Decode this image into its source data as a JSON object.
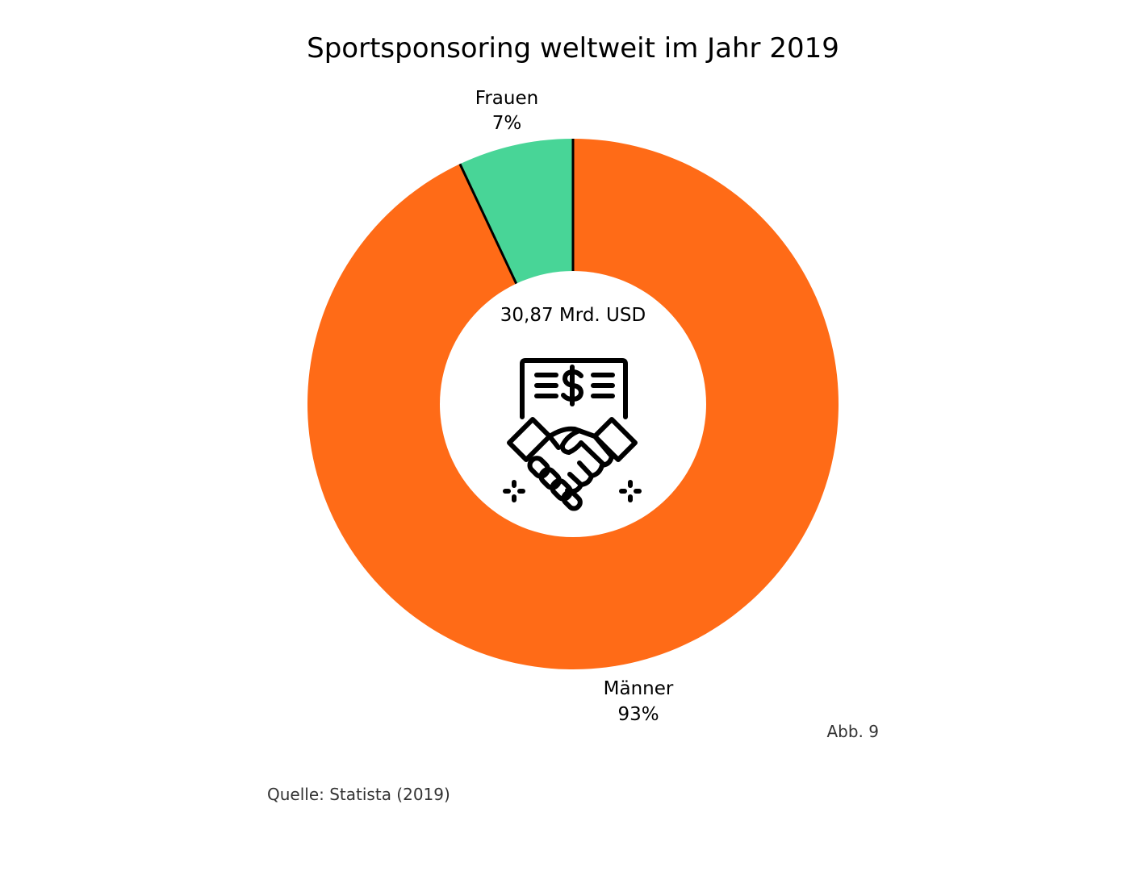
{
  "chart_data": {
    "type": "pie",
    "title": "Sportsponsoring weltweit im Jahr 2019",
    "center_label": "30,87 Mrd. USD",
    "center_icon": "handshake-contract-icon",
    "categories": [
      "Männer",
      "Frauen"
    ],
    "values": [
      93,
      7
    ],
    "value_labels": [
      "93%",
      "7%"
    ],
    "colors": [
      "#ff6b17",
      "#48d597"
    ],
    "separator_color": "#000000",
    "legend": "none"
  },
  "figure_label": "Abb. 9",
  "source": "Quelle: Statista (2019)"
}
